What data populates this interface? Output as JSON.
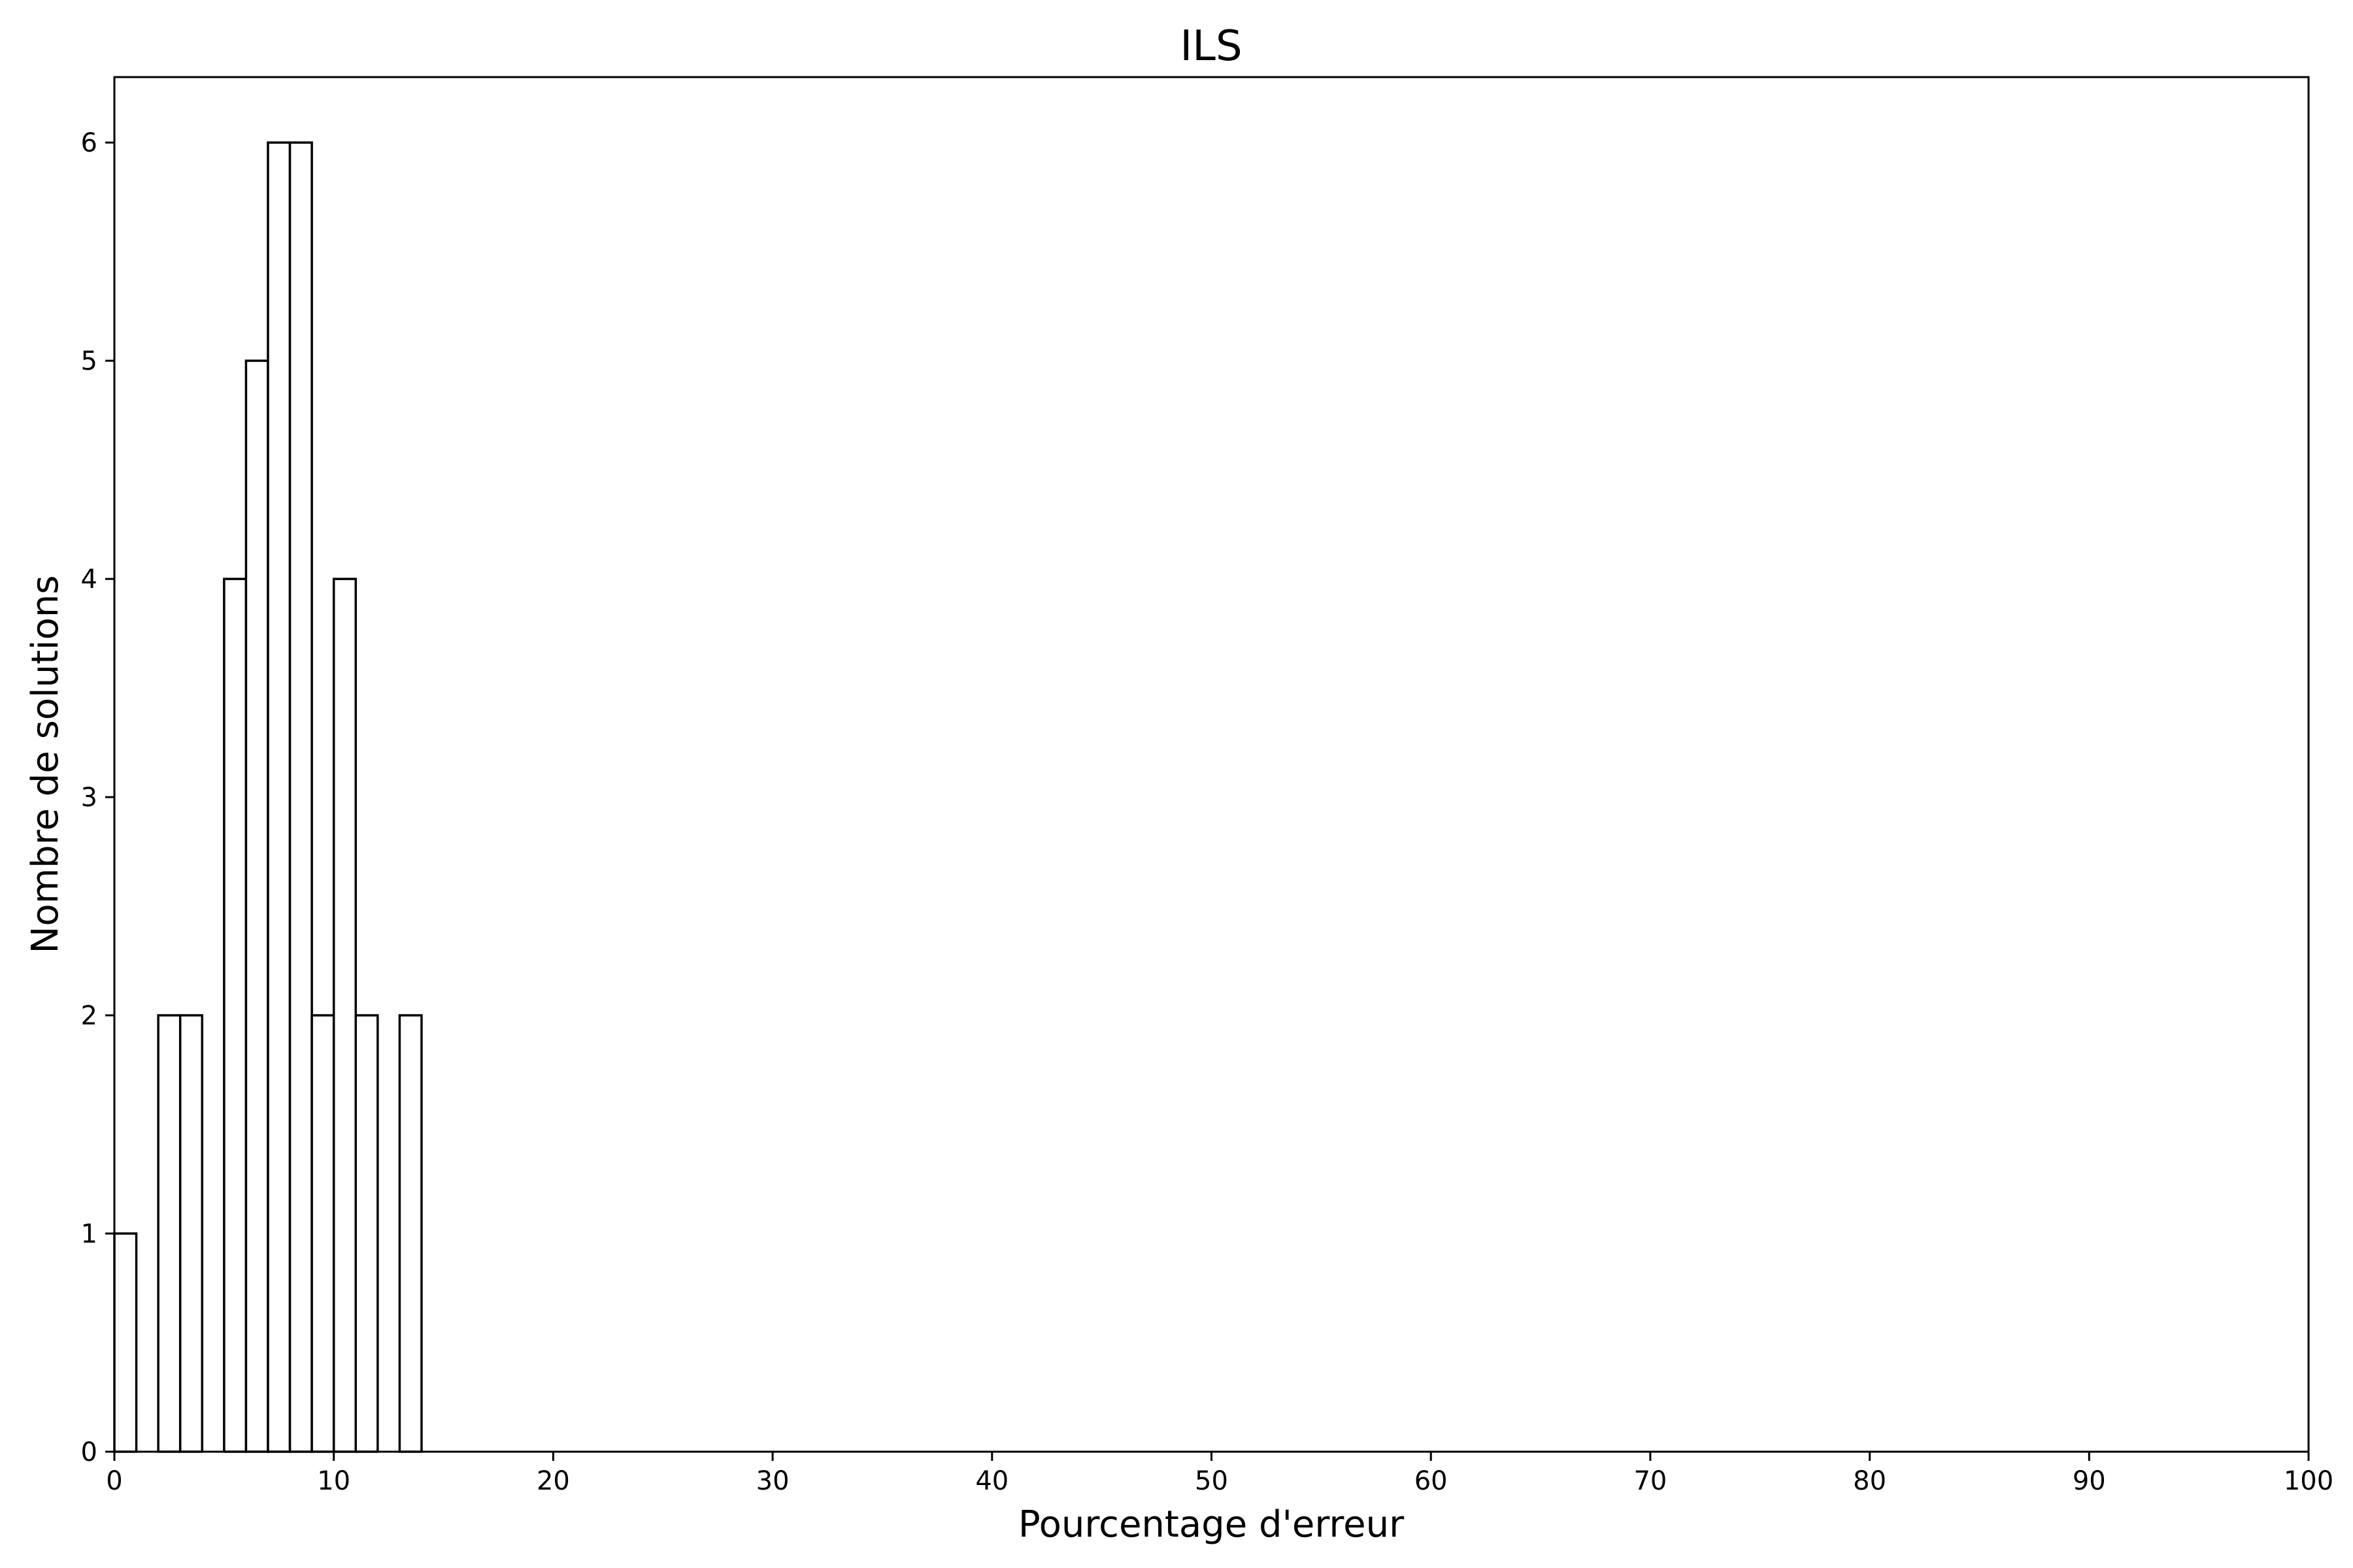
{
  "chart_data": {
    "type": "bar",
    "title": "ILS",
    "xlabel": "Pourcentage d'erreur",
    "ylabel": "Nombre de solutions",
    "xlim": [
      0,
      100
    ],
    "ylim": [
      0,
      6.3
    ],
    "xticks": [
      0,
      10,
      20,
      30,
      40,
      50,
      60,
      70,
      80,
      90,
      100
    ],
    "yticks": [
      0,
      1,
      2,
      3,
      4,
      5,
      6
    ],
    "bin_width": 1,
    "bins": [
      {
        "x": 0,
        "count": 1
      },
      {
        "x": 2,
        "count": 2
      },
      {
        "x": 3,
        "count": 2
      },
      {
        "x": 5,
        "count": 4
      },
      {
        "x": 6,
        "count": 5
      },
      {
        "x": 7,
        "count": 6
      },
      {
        "x": 8,
        "count": 6
      },
      {
        "x": 9,
        "count": 2
      },
      {
        "x": 10,
        "count": 4
      },
      {
        "x": 11,
        "count": 2
      },
      {
        "x": 13,
        "count": 2
      }
    ],
    "grid": false,
    "fill_color": "#ffffff",
    "edge_color": "#000000"
  }
}
